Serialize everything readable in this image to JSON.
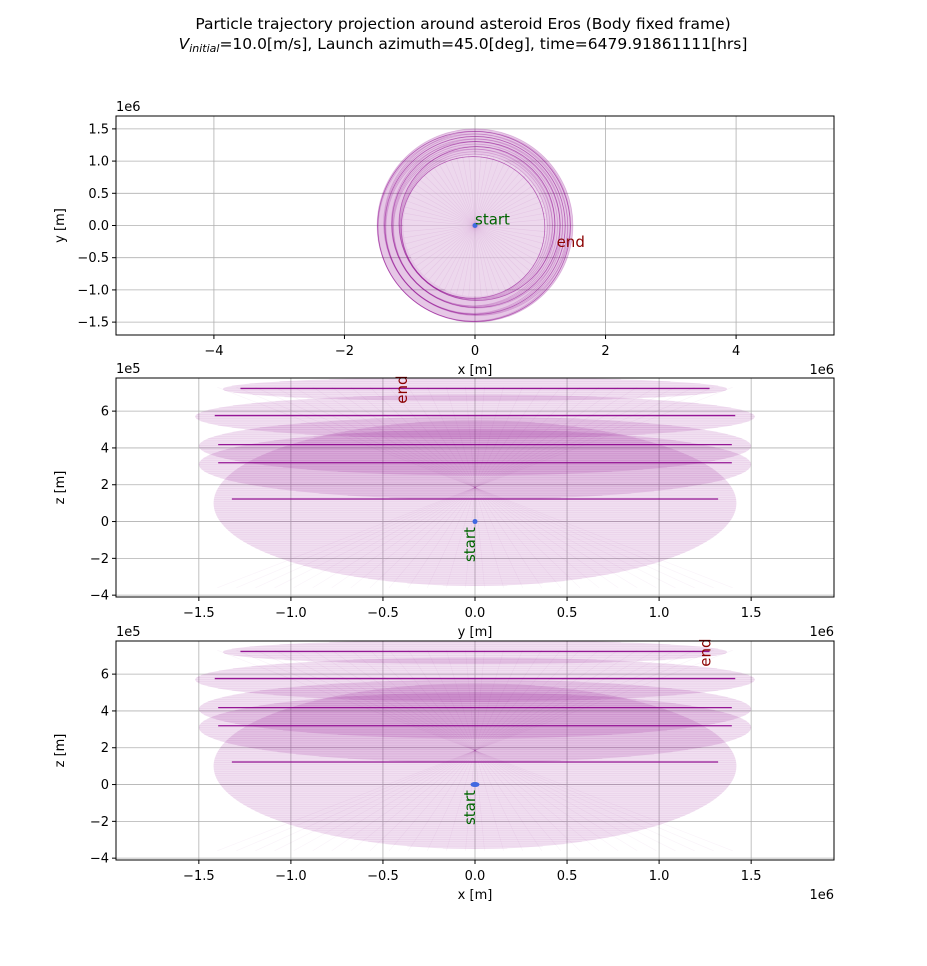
{
  "title": {
    "line1": "Particle trajectory projection around asteroid Eros (Body fixed frame)",
    "line2_prefix": "V",
    "line2_sub": "initial",
    "line2_rest": "=10.0[m/s], Launch azimuth=45.0[deg], time=6479.91861111[hrs]"
  },
  "colors": {
    "trajectory": "#8b008b",
    "start_marker": "#4169e1",
    "start_label": "#006400",
    "end_label": "#8b0000",
    "grid": "#b0b0b0"
  },
  "chart_data": [
    {
      "type": "line",
      "name": "xy",
      "xlabel": "x [m]",
      "ylabel": "y [m]",
      "x_offset_label": "1e6",
      "y_offset_label": "1e6",
      "xlim": [
        -5.5,
        5.5
      ],
      "ylim": [
        -1.7,
        1.7
      ],
      "xticks": [
        -4,
        -2,
        0,
        2,
        4
      ],
      "xtick_labels": [
        "−4",
        "−2",
        "0",
        "2",
        "4"
      ],
      "yticks": [
        -1.5,
        -1.0,
        -0.5,
        0.0,
        0.5,
        1.0,
        1.5
      ],
      "ytick_labels": [
        "−1.5",
        "−1.0",
        "−0.5",
        "0.0",
        "0.5",
        "1.0",
        "1.5"
      ],
      "grid": true,
      "trajectory_envelope": {
        "outer_radius": 1.5,
        "inner_radius": 1.1,
        "center": [
          0,
          0
        ]
      },
      "start_point": [
        0,
        0
      ],
      "annotations": [
        {
          "text": "start",
          "x": 0.0,
          "y": 0.0,
          "rotation": 0,
          "role": "start"
        },
        {
          "text": "end",
          "x": 1.25,
          "y": -0.35,
          "rotation": 0,
          "role": "end"
        }
      ]
    },
    {
      "type": "line",
      "name": "yz",
      "xlabel": "y [m]",
      "ylabel": "z [m]",
      "x_offset_label": "1e6",
      "y_offset_label": "1e5",
      "xlim": [
        -1.95,
        1.95
      ],
      "ylim": [
        -4.1,
        7.8
      ],
      "xticks": [
        -1.5,
        -1.0,
        -0.5,
        0.0,
        0.5,
        1.0,
        1.5
      ],
      "xtick_labels": [
        "−1.5",
        "−1.0",
        "−0.5",
        "0.0",
        "0.5",
        "1.0",
        "1.5"
      ],
      "yticks": [
        -4,
        -2,
        0,
        2,
        4,
        6
      ],
      "ytick_labels": [
        "−4",
        "−2",
        "0",
        "2",
        "4",
        "6"
      ],
      "grid": true,
      "trajectory_bands": [
        {
          "z": 7.2,
          "half_width": 1.37,
          "thickness": 1.3
        },
        {
          "z": 5.7,
          "half_width": 1.52,
          "thickness": 2.4
        },
        {
          "z": 4.1,
          "half_width": 1.5,
          "thickness": 3.2
        },
        {
          "z": 3.1,
          "half_width": 1.5,
          "thickness": 3.8
        },
        {
          "z": 1.0,
          "half_width": 1.42,
          "thickness": 9.0
        }
      ],
      "start_point": [
        0,
        0
      ],
      "annotations": [
        {
          "text": "start",
          "x": 0.0,
          "y": -2.2,
          "rotation": -90,
          "role": "start"
        },
        {
          "text": "end",
          "x": -0.37,
          "y": 6.4,
          "rotation": -90,
          "role": "end"
        }
      ]
    },
    {
      "type": "line",
      "name": "xz",
      "xlabel": "x [m]",
      "ylabel": "z [m]",
      "x_offset_label": "1e6",
      "y_offset_label": "1e5",
      "xlim": [
        -1.95,
        1.95
      ],
      "ylim": [
        -4.1,
        7.8
      ],
      "xticks": [
        -1.5,
        -1.0,
        -0.5,
        0.0,
        0.5,
        1.0,
        1.5
      ],
      "xtick_labels": [
        "−1.5",
        "−1.0",
        "−0.5",
        "0.0",
        "0.5",
        "1.0",
        "1.5"
      ],
      "yticks": [
        -4,
        -2,
        0,
        2,
        4,
        6
      ],
      "ytick_labels": [
        "−4",
        "−2",
        "0",
        "2",
        "4",
        "6"
      ],
      "grid": true,
      "trajectory_bands": [
        {
          "z": 7.2,
          "half_width": 1.37,
          "thickness": 1.3
        },
        {
          "z": 5.7,
          "half_width": 1.52,
          "thickness": 2.4
        },
        {
          "z": 4.1,
          "half_width": 1.5,
          "thickness": 3.2
        },
        {
          "z": 3.1,
          "half_width": 1.5,
          "thickness": 3.8
        },
        {
          "z": 1.0,
          "half_width": 1.42,
          "thickness": 9.0
        }
      ],
      "start_point": [
        0,
        0
      ],
      "annotations": [
        {
          "text": "start",
          "x": 0.0,
          "y": -2.2,
          "rotation": -90,
          "role": "start"
        },
        {
          "text": "end",
          "x": 1.28,
          "y": 6.4,
          "rotation": -90,
          "role": "end"
        }
      ]
    }
  ]
}
